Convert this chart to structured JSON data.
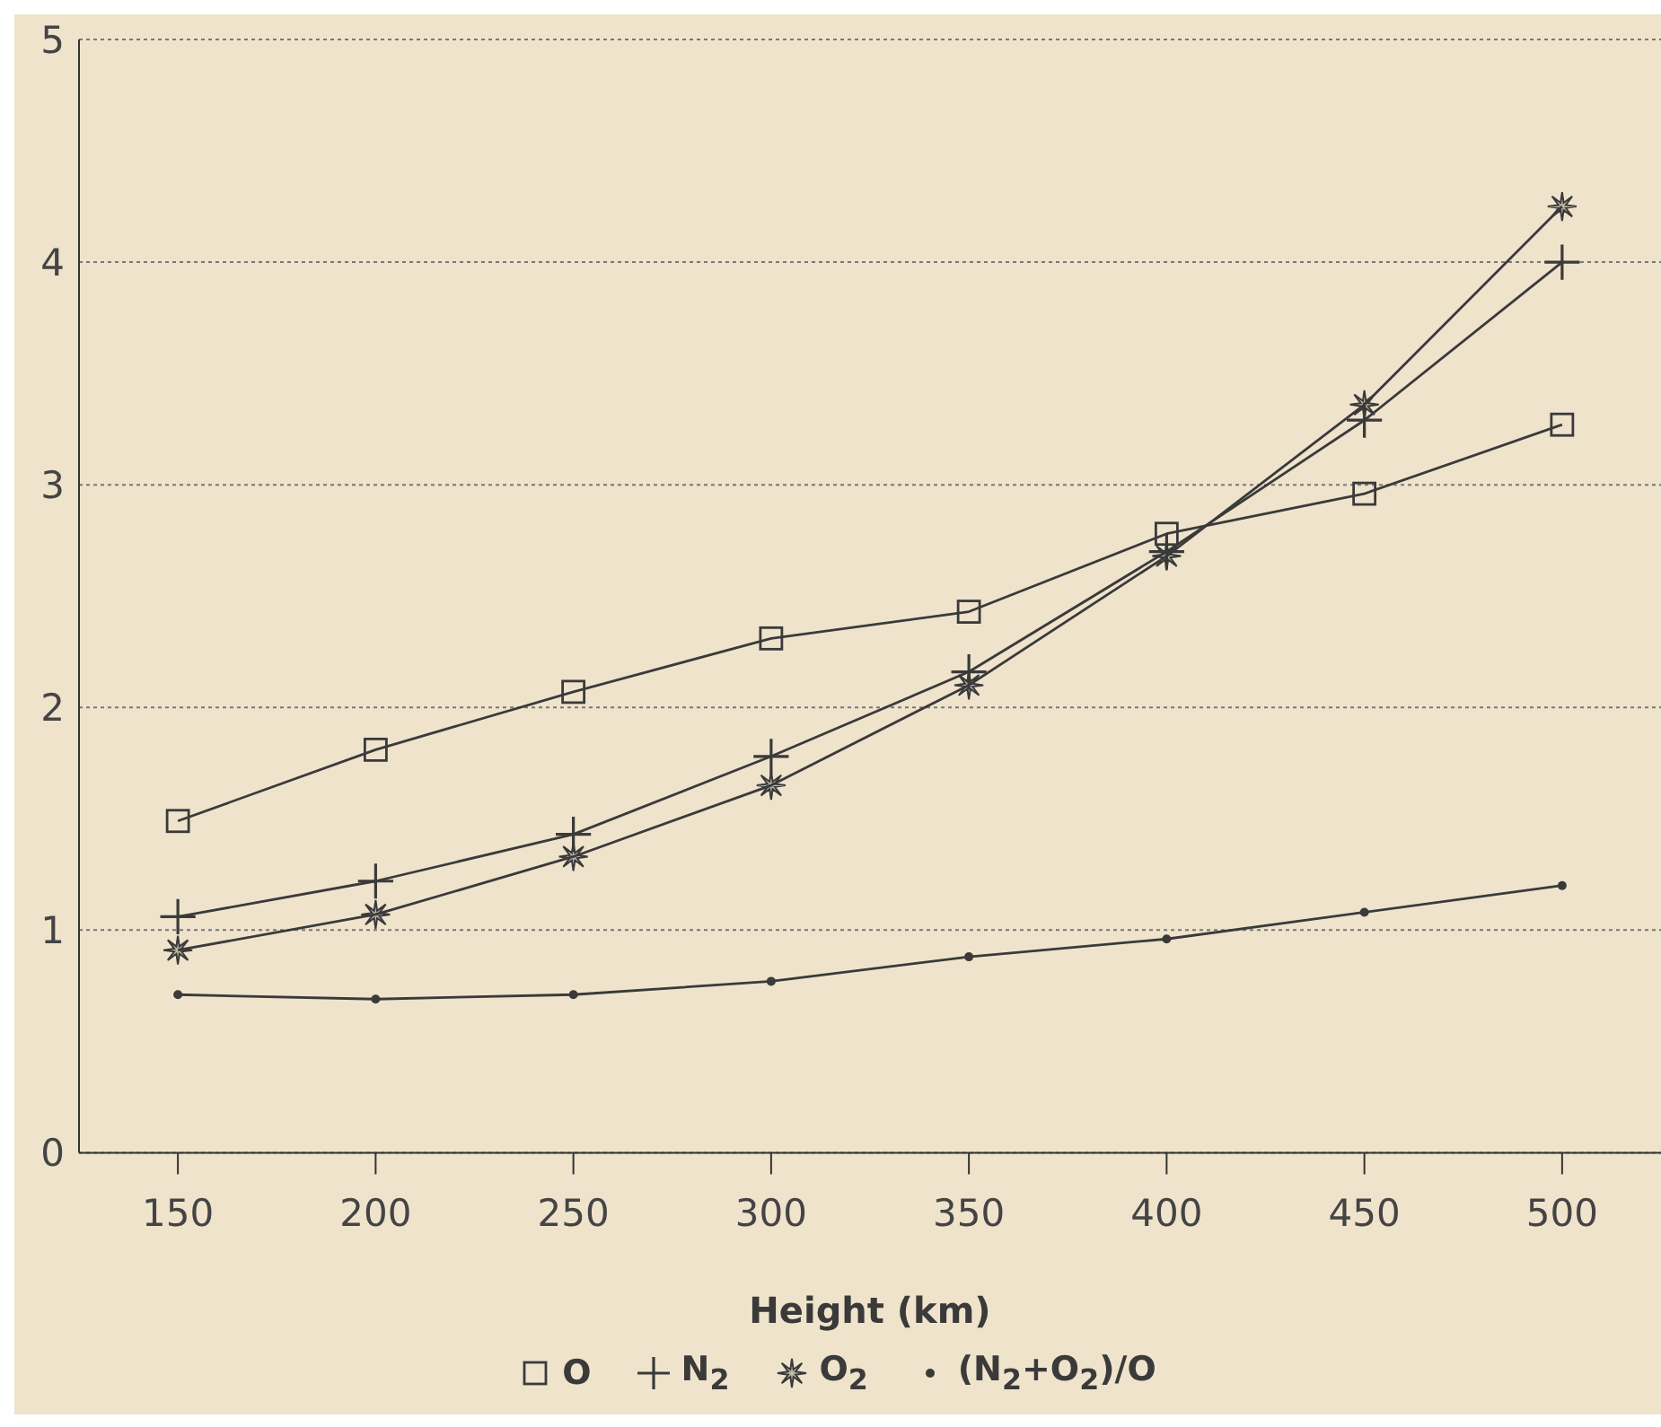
{
  "chart_data": {
    "type": "line",
    "xlabel": "Height (km)",
    "x": [
      150,
      200,
      250,
      300,
      350,
      400,
      450,
      500
    ],
    "series": [
      {
        "name": "O",
        "color": "#3a3a3a",
        "marker": "square",
        "values": [
          1.49,
          1.81,
          2.07,
          2.31,
          2.43,
          2.78,
          2.96,
          3.27
        ]
      },
      {
        "name": "N$_{2}$",
        "color": "#3a3a3a",
        "marker": "cross",
        "values": [
          1.06,
          1.22,
          1.43,
          1.78,
          2.16,
          2.7,
          3.29,
          4.0
        ]
      },
      {
        "name": "O$_{2}$",
        "color": "#3a3a3a",
        "marker": "star",
        "values": [
          0.91,
          1.07,
          1.33,
          1.65,
          2.1,
          2.68,
          3.36,
          4.25
        ]
      },
      {
        "name": "(N$_{2}$+O$_{2}$)/O",
        "color": "#3a3a3a",
        "marker": "circle",
        "values": [
          0.71,
          0.69,
          0.71,
          0.77,
          0.88,
          0.96,
          1.08,
          1.2
        ]
      }
    ],
    "xlim": [
      125,
      525
    ],
    "xticks": [
      150,
      200,
      250,
      300,
      350,
      400,
      450,
      500
    ],
    "ylim": [
      0,
      5
    ],
    "yticks": [
      0,
      1,
      2,
      3,
      4,
      5
    ],
    "grid": "y",
    "legend": "bottom",
    "line_style": "solid"
  }
}
